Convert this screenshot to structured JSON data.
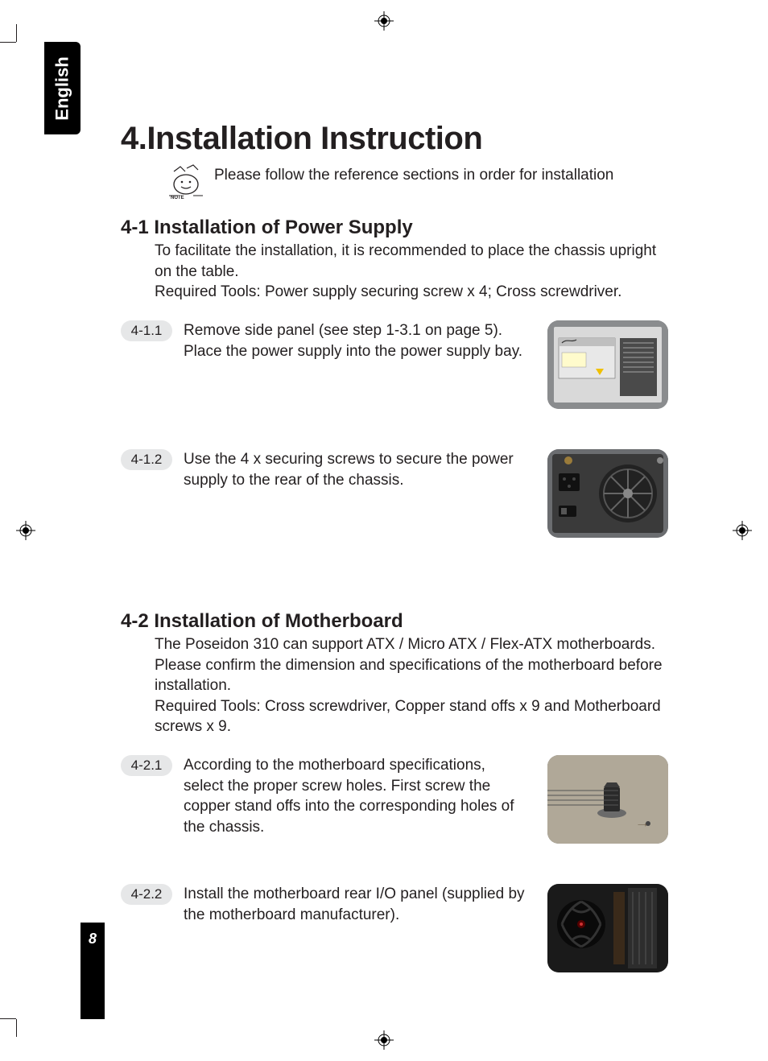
{
  "page": {
    "language_tab": "English",
    "page_number": "8"
  },
  "chapter": {
    "title": "4.Installation Instruction",
    "note": "Please follow the reference sections in order for installation"
  },
  "section_4_1": {
    "heading": "4-1 Installation of Power Supply",
    "body": "To facilitate the installation, it is recommended to place the chassis upright on the table.\nRequired Tools: Power supply securing screw x 4; Cross screwdriver.",
    "steps": [
      {
        "label": "4-1.1",
        "text": "Remove side panel (see step 1-3.1 on page 5). Place the power supply into the power supply bay."
      },
      {
        "label": "4-1.2",
        "text": "Use the 4 x securing screws to secure the power supply to the rear of the chassis."
      }
    ]
  },
  "section_4_2": {
    "heading": "4-2 Installation of Motherboard",
    "body": "The Poseidon 310 can support ATX / Micro ATX / Flex-ATX motherboards. Please confirm the dimension and specifications of the motherboard before installation.\nRequired Tools: Cross screwdriver, Copper stand offs x 9 and Motherboard screws x 9.",
    "steps": [
      {
        "label": "4-2.1",
        "text": "According to the motherboard specifications, select the proper screw holes. First screw the copper stand offs into the corresponding holes of the chassis."
      },
      {
        "label": "4-2.2",
        "text": "Install the motherboard rear I/O panel (supplied by the motherboard manufacturer)."
      }
    ]
  },
  "colors": {
    "text": "#231f20",
    "tab_bg": "#000000",
    "step_pill_bg": "#e6e7e8",
    "page_bg": "#ffffff"
  }
}
